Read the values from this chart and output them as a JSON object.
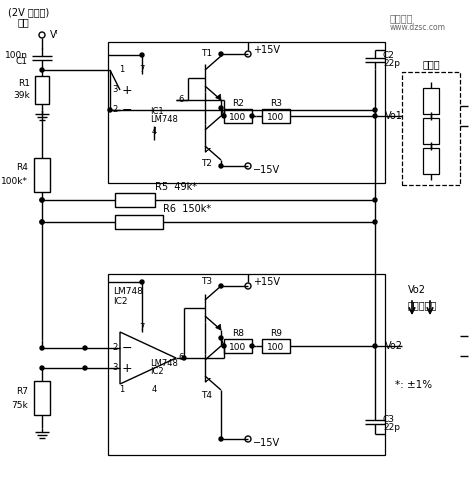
{
  "bg_color": "#ffffff",
  "line_color": "#000000",
  "annotations": {
    "top_left_line1": "(2V 正弦波)",
    "top_left_line2": "输入",
    "vi_label": "Vᴵ",
    "c1_label": "100n",
    "c1_label2": "C1",
    "r1_label": "R1",
    "r1_label2": "39k",
    "ic1_label": "IC1",
    "ic1_label2": "LM748",
    "t1_label": "T1",
    "t2_label": "T2",
    "r2_label": "R2",
    "r2_val": "100",
    "r3_label": "R3",
    "r3_val": "100",
    "r4_label": "R4",
    "r4_label2": "100k*",
    "r5_label": "R5  49k*",
    "r6_label": "R6  150k*",
    "plus15v_top": "+15V",
    "minus15v_top": "−15V",
    "c2_label": "C2",
    "c2_val": "22p",
    "vo1_label": "Vo1",
    "sensor_label": "传感器",
    "ic2_label": "LM748",
    "ic2_label2": "IC2",
    "t3_label": "T3",
    "t4_label": "T4",
    "r8_label": "R8",
    "r8_val": "100",
    "r9_label": "R9",
    "r9_val": "100",
    "r7_label": "R7",
    "r7_label2": "75k",
    "c3_label": "C3",
    "c3_val": "22p",
    "plus15v_bot": "+15V",
    "minus15v_bot": "−15V",
    "vo2_label": "Vo2",
    "sensor_out_label": "传感器输出",
    "star_label": "*: ±1%",
    "logo_line1": "维库一卡",
    "logo_line2": "www.dzsc.com"
  }
}
